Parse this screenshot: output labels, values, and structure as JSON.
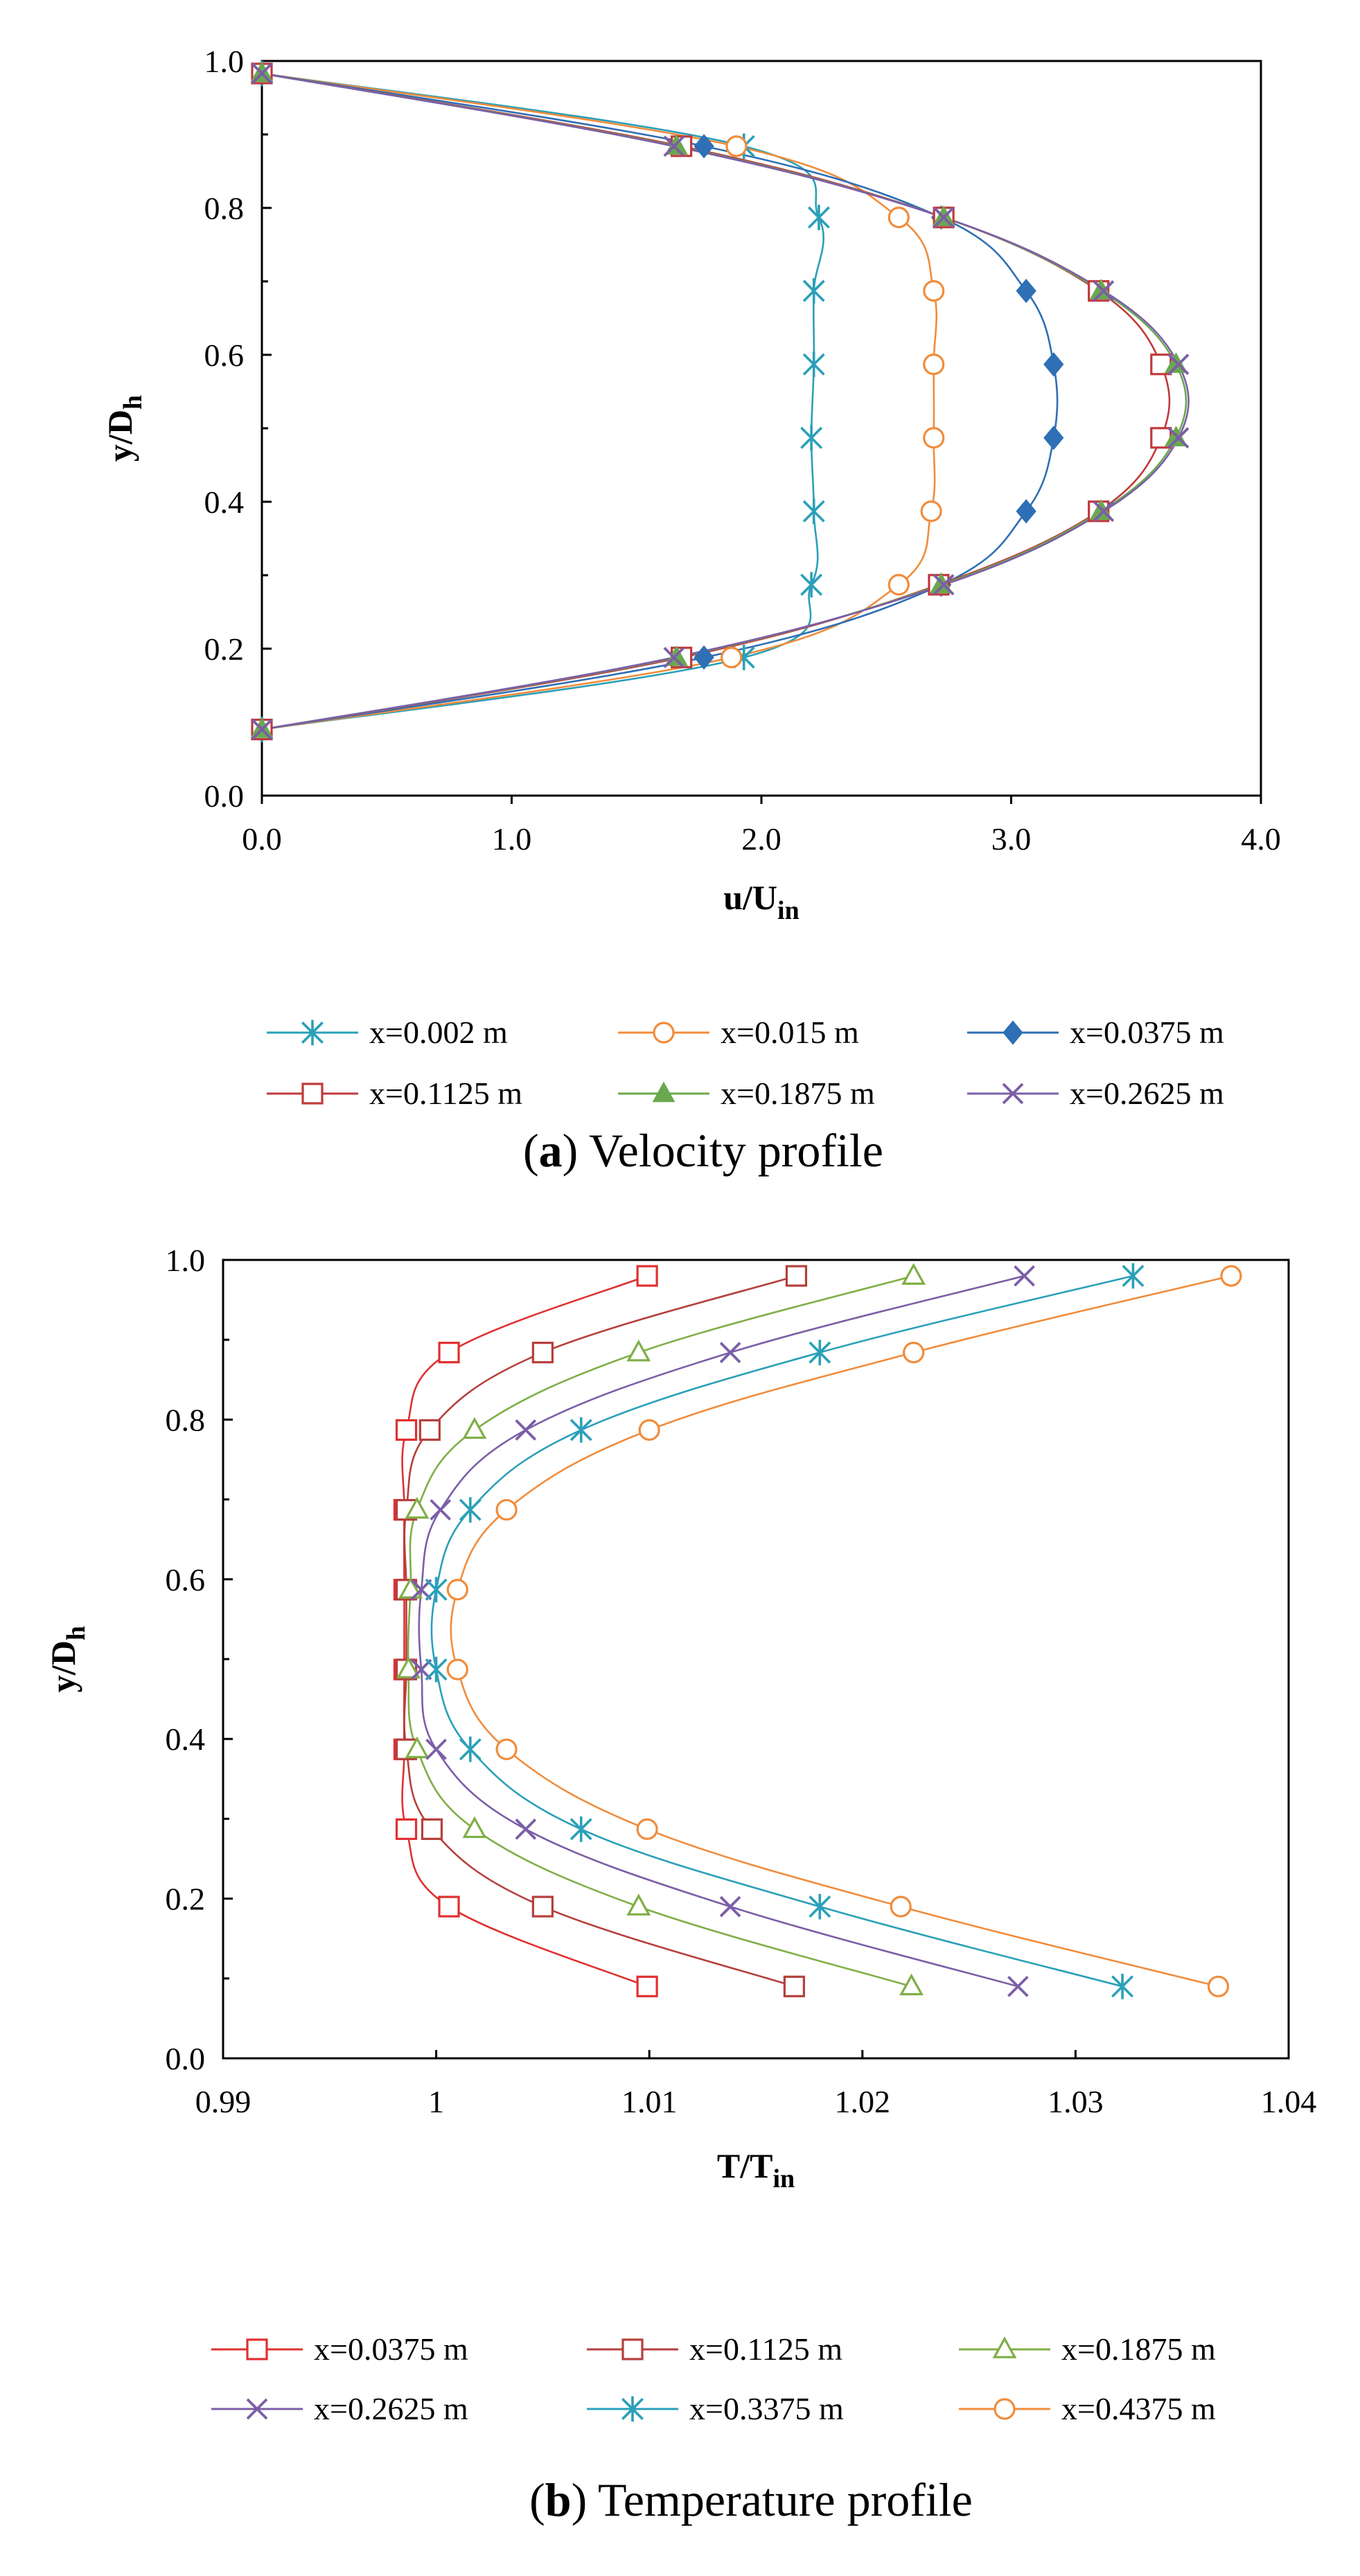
{
  "chart_data": [
    {
      "type": "line",
      "caption": {
        "tag": "a",
        "text": "Velocity profile"
      },
      "xlabel": {
        "main": "u/U",
        "sub": "in"
      },
      "ylabel": {
        "main": "y/D",
        "sub": "h"
      },
      "xlim": [
        0,
        4
      ],
      "ylim": [
        0,
        1
      ],
      "xticks": [
        "0.0",
        "1.0",
        "2.0",
        "3.0",
        "4.0"
      ],
      "yticks": [
        "0.0",
        "0.2",
        "0.4",
        "0.6",
        "0.8",
        "1.0"
      ],
      "grid": false,
      "legend_position": "bottom",
      "series": [
        {
          "name": "x=0.002 m",
          "color": "#2aa0b8",
          "marker": "star",
          "points": [
            [
              0,
              0.09
            ],
            [
              1.93,
              0.188
            ],
            [
              2.2,
              0.287
            ],
            [
              2.21,
              0.387
            ],
            [
              2.2,
              0.487
            ],
            [
              2.21,
              0.587
            ],
            [
              2.21,
              0.687
            ],
            [
              2.23,
              0.787
            ],
            [
              1.93,
              0.884
            ],
            [
              0,
              0.983
            ]
          ]
        },
        {
          "name": "x=0.015 m",
          "color": "#f08c3c",
          "marker": "circle",
          "points": [
            [
              0,
              0.09
            ],
            [
              1.88,
              0.188
            ],
            [
              2.55,
              0.287
            ],
            [
              2.68,
              0.387
            ],
            [
              2.69,
              0.487
            ],
            [
              2.69,
              0.587
            ],
            [
              2.69,
              0.687
            ],
            [
              2.55,
              0.787
            ],
            [
              1.9,
              0.884
            ],
            [
              0,
              0.983
            ]
          ]
        },
        {
          "name": "x=0.0375 m",
          "color": "#2e6fb5",
          "marker": "diamond",
          "points": [
            [
              0,
              0.09
            ],
            [
              1.77,
              0.188
            ],
            [
              2.72,
              0.287
            ],
            [
              3.06,
              0.387
            ],
            [
              3.17,
              0.487
            ],
            [
              3.17,
              0.587
            ],
            [
              3.06,
              0.687
            ],
            [
              2.72,
              0.787
            ],
            [
              1.77,
              0.884
            ],
            [
              0,
              0.983
            ]
          ]
        },
        {
          "name": "x=0.1125 m",
          "color": "#c0393b",
          "marker": "square",
          "points": [
            [
              0,
              0.09
            ],
            [
              1.68,
              0.188
            ],
            [
              2.71,
              0.287
            ],
            [
              3.35,
              0.387
            ],
            [
              3.6,
              0.487
            ],
            [
              3.6,
              0.587
            ],
            [
              3.35,
              0.687
            ],
            [
              2.73,
              0.787
            ],
            [
              1.68,
              0.884
            ],
            [
              0,
              0.983
            ]
          ]
        },
        {
          "name": "x=0.1875 m",
          "color": "#6aa84f",
          "marker": "triangle",
          "points": [
            [
              0,
              0.09
            ],
            [
              1.66,
              0.188
            ],
            [
              2.72,
              0.287
            ],
            [
              3.36,
              0.387
            ],
            [
              3.66,
              0.487
            ],
            [
              3.66,
              0.587
            ],
            [
              3.36,
              0.687
            ],
            [
              2.73,
              0.787
            ],
            [
              1.66,
              0.884
            ],
            [
              0,
              0.983
            ]
          ]
        },
        {
          "name": "x=0.2625 m",
          "color": "#7b5ea7",
          "marker": "x",
          "points": [
            [
              0,
              0.09
            ],
            [
              1.65,
              0.188
            ],
            [
              2.73,
              0.287
            ],
            [
              3.37,
              0.387
            ],
            [
              3.67,
              0.487
            ],
            [
              3.67,
              0.587
            ],
            [
              3.37,
              0.687
            ],
            [
              2.73,
              0.787
            ],
            [
              1.65,
              0.884
            ],
            [
              0,
              0.983
            ]
          ]
        }
      ]
    },
    {
      "type": "line",
      "caption": {
        "tag": "b",
        "text": "Temperature profile"
      },
      "xlabel": {
        "main": "T/T",
        "sub": "in"
      },
      "ylabel": {
        "main": "y/D",
        "sub": "h"
      },
      "xlim": [
        0.99,
        1.04
      ],
      "ylim": [
        0,
        1
      ],
      "xticks": [
        "0.99",
        "1",
        "1.01",
        "1.02",
        "1.03",
        "1.04"
      ],
      "yticks": [
        "0.0",
        "0.2",
        "0.4",
        "0.6",
        "0.8",
        "1.0"
      ],
      "grid": false,
      "legend_position": "bottom",
      "series": [
        {
          "name": "x=0.0375 m",
          "color": "#e03030",
          "marker": "square",
          "points": [
            [
              1.0099,
              0.09
            ],
            [
              1.0006,
              0.19
            ],
            [
              0.9986,
              0.287
            ],
            [
              0.9985,
              0.387
            ],
            [
              0.9985,
              0.487
            ],
            [
              0.9985,
              0.587
            ],
            [
              0.9985,
              0.687
            ],
            [
              0.9986,
              0.787
            ],
            [
              1.0006,
              0.884
            ],
            [
              1.0099,
              0.98
            ]
          ]
        },
        {
          "name": "x=0.1125 m",
          "color": "#b5403c",
          "marker": "square",
          "points": [
            [
              1.0168,
              0.09
            ],
            [
              1.005,
              0.19
            ],
            [
              0.9998,
              0.287
            ],
            [
              0.9986,
              0.387
            ],
            [
              0.9986,
              0.487
            ],
            [
              0.9986,
              0.587
            ],
            [
              0.9986,
              0.687
            ],
            [
              0.9997,
              0.787
            ],
            [
              1.005,
              0.884
            ],
            [
              1.0169,
              0.98
            ]
          ]
        },
        {
          "name": "x=0.1875 m",
          "color": "#7fae46",
          "marker": "triangle",
          "points": [
            [
              1.0223,
              0.09
            ],
            [
              1.0095,
              0.19
            ],
            [
              1.0018,
              0.287
            ],
            [
              0.9991,
              0.387
            ],
            [
              0.9987,
              0.487
            ],
            [
              0.9988,
              0.587
            ],
            [
              0.9991,
              0.687
            ],
            [
              1.0018,
              0.787
            ],
            [
              1.0095,
              0.884
            ],
            [
              1.0224,
              0.98
            ]
          ]
        },
        {
          "name": "x=0.2625 m",
          "color": "#7b5ea7",
          "marker": "x",
          "points": [
            [
              1.0273,
              0.09
            ],
            [
              1.0138,
              0.19
            ],
            [
              1.0042,
              0.287
            ],
            [
              1.0,
              0.387
            ],
            [
              0.9993,
              0.487
            ],
            [
              0.9993,
              0.587
            ],
            [
              1.0002,
              0.687
            ],
            [
              1.0042,
              0.787
            ],
            [
              1.0138,
              0.884
            ],
            [
              1.0276,
              0.98
            ]
          ]
        },
        {
          "name": "x=0.3375 m",
          "color": "#2aa0b8",
          "marker": "star",
          "points": [
            [
              1.0322,
              0.09
            ],
            [
              1.018,
              0.19
            ],
            [
              1.0068,
              0.287
            ],
            [
              1.0016,
              0.387
            ],
            [
              1.0,
              0.487
            ],
            [
              1.0,
              0.587
            ],
            [
              1.0016,
              0.687
            ],
            [
              1.0068,
              0.787
            ],
            [
              1.018,
              0.884
            ],
            [
              1.0327,
              0.98
            ]
          ]
        },
        {
          "name": "x=0.4375 m",
          "color": "#f08c3c",
          "marker": "circle",
          "points": [
            [
              1.0367,
              0.09
            ],
            [
              1.0218,
              0.19
            ],
            [
              1.0099,
              0.287
            ],
            [
              1.0033,
              0.387
            ],
            [
              1.001,
              0.487
            ],
            [
              1.001,
              0.587
            ],
            [
              1.0033,
              0.687
            ],
            [
              1.01,
              0.787
            ],
            [
              1.0224,
              0.884
            ],
            [
              1.0373,
              0.98
            ]
          ]
        }
      ]
    }
  ]
}
